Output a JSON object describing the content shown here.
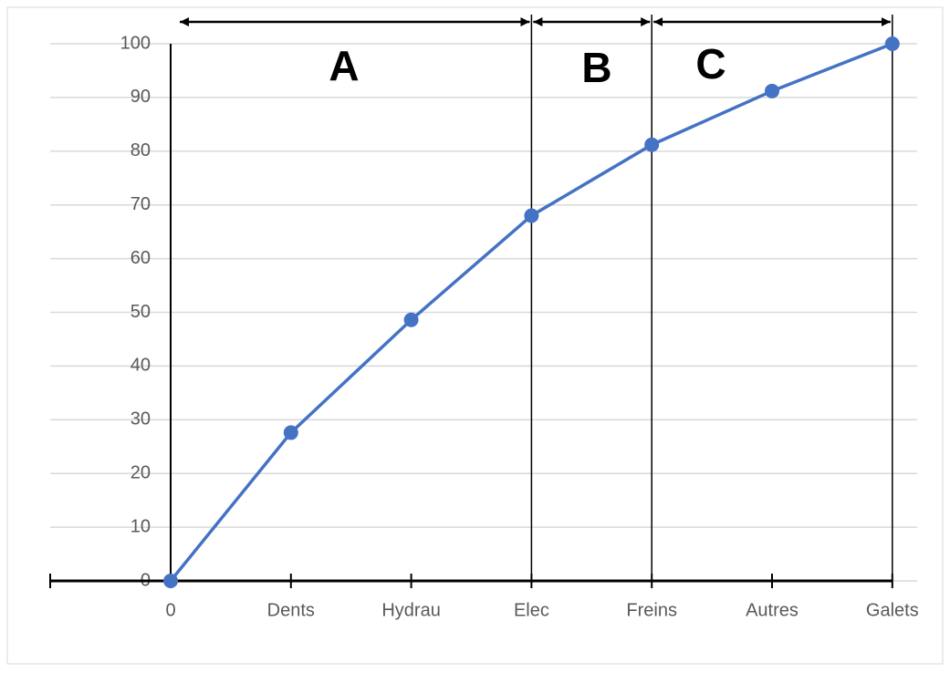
{
  "chart_data": {
    "type": "line",
    "categories": [
      "0",
      "Dents",
      "Hydrau",
      "Elec",
      "Freins",
      "Autres",
      "Galets"
    ],
    "series": [
      {
        "color": "#4472c4",
        "values": [
          0,
          27.6,
          48.6,
          68,
          81.2,
          91.2,
          100
        ]
      }
    ],
    "ylim": [
      0,
      100
    ],
    "yticks": [
      0,
      10,
      20,
      30,
      40,
      50,
      60,
      70,
      80,
      90,
      100
    ],
    "grid": true,
    "annotations": [
      "A",
      "B",
      "C"
    ]
  }
}
